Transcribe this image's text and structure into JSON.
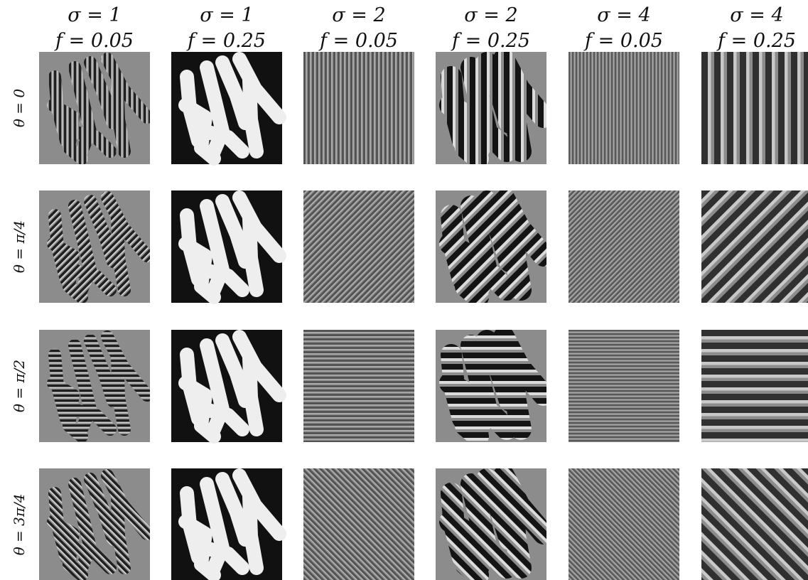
{
  "columns": [
    {
      "sigma": "σ = 1",
      "f": "f = 0.05"
    },
    {
      "sigma": "σ = 1",
      "f": "f = 0.25"
    },
    {
      "sigma": "σ = 2",
      "f": "f = 0.05"
    },
    {
      "sigma": "σ = 2",
      "f": "f = 0.25"
    },
    {
      "sigma": "σ = 4",
      "f": "f = 0.05"
    },
    {
      "sigma": "σ = 4",
      "f": "f = 0.25"
    }
  ],
  "rows": [
    {
      "theta": "θ = 0"
    },
    {
      "theta": "θ = π/4"
    },
    {
      "theta": "θ = π/2"
    },
    {
      "theta": "θ = 3π/4"
    }
  ]
}
